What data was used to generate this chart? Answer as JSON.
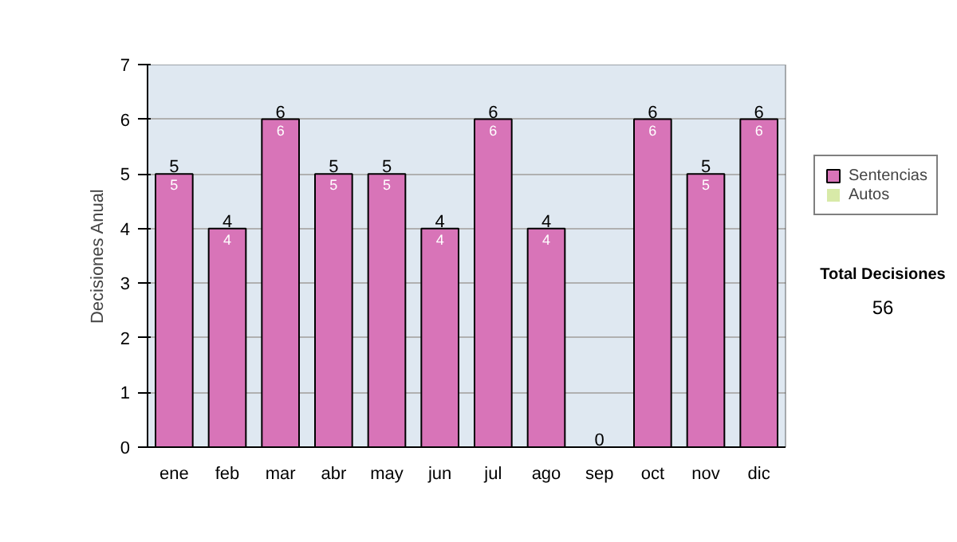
{
  "chart_data": {
    "type": "bar",
    "stacked": true,
    "ylabel": "Decisiones Anual",
    "categories": [
      "ene",
      "feb",
      "mar",
      "abr",
      "may",
      "jun",
      "jul",
      "ago",
      "sep",
      "oct",
      "nov",
      "dic"
    ],
    "series": [
      {
        "name": "Sentencias",
        "color": "#d874b8",
        "values": [
          5,
          4,
          6,
          5,
          5,
          4,
          6,
          4,
          0,
          6,
          5,
          6
        ],
        "value_labels": [
          "5",
          "4",
          "6",
          "5",
          "5",
          "4",
          "6",
          "4",
          null,
          "6",
          "5",
          "6"
        ]
      },
      {
        "name": "Autos",
        "color": "#d8eaa8",
        "values": [
          0,
          0,
          0,
          0,
          0,
          0,
          0,
          0,
          0,
          0,
          0,
          0
        ]
      }
    ],
    "totals": [
      "5",
      "4",
      "6",
      "5",
      "5",
      "4",
      "6",
      "4",
      "0",
      "6",
      "5",
      "6"
    ],
    "ylim": [
      0,
      7
    ],
    "yticks": [
      0,
      1,
      2,
      3,
      4,
      5,
      6,
      7
    ],
    "grid": "y",
    "legend": "right",
    "annotations": [
      "Total Decisiones",
      "56"
    ]
  }
}
